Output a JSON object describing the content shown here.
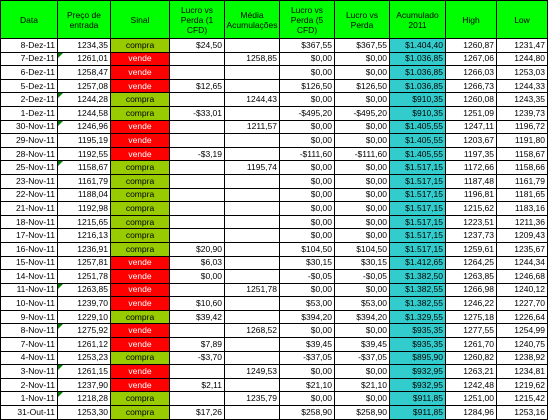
{
  "headers": {
    "data": "Data",
    "preco": "Preço de entrada",
    "sinal": "Sinal",
    "lucro1": "Lucro vs Perda (1 CFD)",
    "media": "Média Acumulações",
    "lucro5": "Lucro vs Perda (5 CFD)",
    "lucro": "Lucro vs Perda",
    "acumulado": "Acumulado 2011",
    "high": "High",
    "low": "Low"
  },
  "rows": [
    {
      "data": "8-Dez-11",
      "preco": "1234,35",
      "sinal": "compra",
      "lucro1": "$24,50",
      "media": "",
      "lucro5": "$367,55",
      "lucro": "$367,55",
      "acumulado": "$1.404,40",
      "high": "1260,87",
      "low": "1231,47"
    },
    {
      "data": "7-Dez-11",
      "preco": "1261,01",
      "sinal": "vende",
      "lucro1": "",
      "media": "1258,85",
      "lucro5": "$0,00",
      "lucro": "$0,00",
      "acumulado": "$1.036,85",
      "high": "1267,06",
      "low": "1244,80"
    },
    {
      "data": "6-Dez-11",
      "preco": "1258,47",
      "sinal": "vende",
      "lucro1": "",
      "media": "",
      "lucro5": "$0,00",
      "lucro": "$0,00",
      "acumulado": "$1.036,85",
      "high": "1266,03",
      "low": "1253,03"
    },
    {
      "data": "5-Dez-11",
      "preco": "1257,08",
      "sinal": "vende",
      "lucro1": "$12,65",
      "media": "",
      "lucro5": "$126,50",
      "lucro": "$126,50",
      "acumulado": "$1.036,85",
      "high": "1266,73",
      "low": "1244,33"
    },
    {
      "data": "2-Dez-11",
      "preco": "1244,28",
      "sinal": "compra",
      "lucro1": "",
      "media": "1244,43",
      "lucro5": "$0,00",
      "lucro": "$0,00",
      "acumulado": "$910,35",
      "high": "1260,08",
      "low": "1243,35"
    },
    {
      "data": "1-Dez-11",
      "preco": "1244,58",
      "sinal": "compra",
      "lucro1": "-$33,01",
      "media": "",
      "lucro5": "-$495,20",
      "lucro": "-$495,20",
      "acumulado": "$910,35",
      "high": "1251,09",
      "low": "1239,73"
    },
    {
      "data": "30-Nov-11",
      "preco": "1246,96",
      "sinal": "vende",
      "lucro1": "",
      "media": "1211,57",
      "lucro5": "$0,00",
      "lucro": "$0,00",
      "acumulado": "$1.405,55",
      "high": "1247,11",
      "low": "1196,72"
    },
    {
      "data": "29-Nov-11",
      "preco": "1195,19",
      "sinal": "vende",
      "lucro1": "",
      "media": "",
      "lucro5": "$0,00",
      "lucro": "$0,00",
      "acumulado": "$1.405,55",
      "high": "1203,67",
      "low": "1191,80"
    },
    {
      "data": "28-Nov-11",
      "preco": "1192,55",
      "sinal": "vende",
      "lucro1": "-$3,19",
      "media": "",
      "lucro5": "-$111,60",
      "lucro": "-$111,60",
      "acumulado": "$1.405,55",
      "high": "1197,35",
      "low": "1158,67"
    },
    {
      "data": "25-Nov-11",
      "preco": "1158,67",
      "sinal": "compra",
      "lucro1": "",
      "media": "1195,74",
      "lucro5": "$0,00",
      "lucro": "$0,00",
      "acumulado": "$1.517,15",
      "high": "1172,66",
      "low": "1158,66"
    },
    {
      "data": "23-Nov-11",
      "preco": "1161,79",
      "sinal": "compra",
      "lucro1": "",
      "media": "",
      "lucro5": "$0,00",
      "lucro": "$0,00",
      "acumulado": "$1.517,15",
      "high": "1187,48",
      "high2": "",
      "low": "1161,79"
    },
    {
      "data": "22-Nov-11",
      "preco": "1188,04",
      "sinal": "compra",
      "lucro1": "",
      "media": "",
      "lucro5": "$0,00",
      "lucro": "$0,00",
      "acumulado": "$1.517,15",
      "high": "1196,81",
      "low": "1181,65"
    },
    {
      "data": "21-Nov-11",
      "preco": "1192,98",
      "sinal": "compra",
      "lucro1": "",
      "media": "",
      "lucro5": "$0,00",
      "lucro": "$0,00",
      "acumulado": "$1.517,15",
      "high": "1215,62",
      "low": "1183,16"
    },
    {
      "data": "18-Nov-11",
      "preco": "1215,65",
      "sinal": "compra",
      "lucro1": "",
      "media": "",
      "lucro5": "$0,00",
      "lucro": "$0,00",
      "acumulado": "$1.517,15",
      "high": "1223,51",
      "low": "1211,36"
    },
    {
      "data": "17-Nov-11",
      "preco": "1216,13",
      "sinal": "compra",
      "lucro1": "",
      "media": "",
      "lucro5": "$0,00",
      "lucro": "$0,00",
      "acumulado": "$1.517,15",
      "high": "1237,73",
      "low": "1209,43"
    },
    {
      "data": "16-Nov-11",
      "preco": "1236,91",
      "sinal": "compra",
      "lucro1": "$20,90",
      "media": "",
      "lucro5": "$104,50",
      "lucro": "$104,50",
      "acumulado": "$1.517,15",
      "high": "1259,61",
      "low": "1235,67"
    },
    {
      "data": "15-Nov-11",
      "preco": "1257,81",
      "sinal": "vende",
      "lucro1": "$6,03",
      "media": "",
      "lucro5": "$30,15",
      "lucro": "$30,15",
      "acumulado": "$1.412,65",
      "high": "1264,25",
      "low": "1244,34"
    },
    {
      "data": "14-Nov-11",
      "preco": "1251,78",
      "sinal": "vende",
      "lucro1": "$0,00",
      "media": "",
      "lucro5": "-$0,05",
      "lucro": "-$0,05",
      "acumulado": "$1.382,50",
      "high": "1263,85",
      "low": "1246,68"
    },
    {
      "data": "11-Nov-11",
      "preco": "1263,85",
      "sinal": "vende",
      "lucro1": "",
      "media": "1251,78",
      "lucro5": "$0,00",
      "lucro": "$0,00",
      "acumulado": "$1.382,55",
      "high": "1266,98",
      "low": "1240,12"
    },
    {
      "data": "10-Nov-11",
      "preco": "1239,70",
      "sinal": "vende",
      "lucro1": "$10,60",
      "media": "",
      "lucro5": "$53,00",
      "lucro": "$53,00",
      "acumulado": "$1.382,55",
      "high": "1246,22",
      "low": "1227,70"
    },
    {
      "data": "9-Nov-11",
      "preco": "1229,10",
      "sinal": "compra",
      "lucro1": "$39,42",
      "media": "",
      "lucro5": "$394,20",
      "lucro": "$394,20",
      "acumulado": "$1.329,55",
      "high": "1275,18",
      "low": "1226,64"
    },
    {
      "data": "8-Nov-11",
      "preco": "1275,92",
      "sinal": "vende",
      "lucro1": "",
      "media": "1268,52",
      "lucro5": "$0,00",
      "lucro": "$0,00",
      "acumulado": "$935,35",
      "high": "1277,55",
      "low": "1254,99"
    },
    {
      "data": "7-Nov-11",
      "preco": "1261,12",
      "sinal": "vende",
      "lucro1": "$7,89",
      "media": "",
      "lucro5": "$39,45",
      "lucro": "$39,45",
      "acumulado": "$935,35",
      "high": "1261,70",
      "low": "1240,75"
    },
    {
      "data": "4-Nov-11",
      "preco": "1253,23",
      "sinal": "compra",
      "lucro1": "-$3,70",
      "media": "",
      "lucro5": "-$37,05",
      "lucro": "-$37,05",
      "acumulado": "$895,90",
      "high": "1260,82",
      "low": "1238,92"
    },
    {
      "data": "3-Nov-11",
      "preco": "1261,15",
      "sinal": "vende",
      "lucro1": "",
      "media": "1249,53",
      "lucro5": "$0,00",
      "lucro": "$0,00",
      "acumulado": "$932,95",
      "high": "1263,21",
      "low": "1234,81"
    },
    {
      "data": "2-Nov-11",
      "preco": "1237,90",
      "sinal": "vende",
      "lucro1": "$2,11",
      "media": "",
      "lucro5": "$21,10",
      "lucro": "$21,10",
      "acumulado": "$932,95",
      "high": "1242,48",
      "low": "1219,62"
    },
    {
      "data": "1-Nov-11",
      "preco": "1218,28",
      "sinal": "compra",
      "lucro1": "",
      "media": "1235,79",
      "lucro5": "$0,00",
      "lucro": "$0,00",
      "acumulado": "$911,85",
      "high": "1251,00",
      "low": "1215,42"
    },
    {
      "data": "31-Out-11",
      "preco": "1253,30",
      "sinal": "compra",
      "lucro1": "$17,26",
      "media": "",
      "lucro5": "$258,90",
      "lucro": "$258,90",
      "acumulado": "$911,85",
      "high": "1284,96",
      "low": "1253,16"
    }
  ]
}
